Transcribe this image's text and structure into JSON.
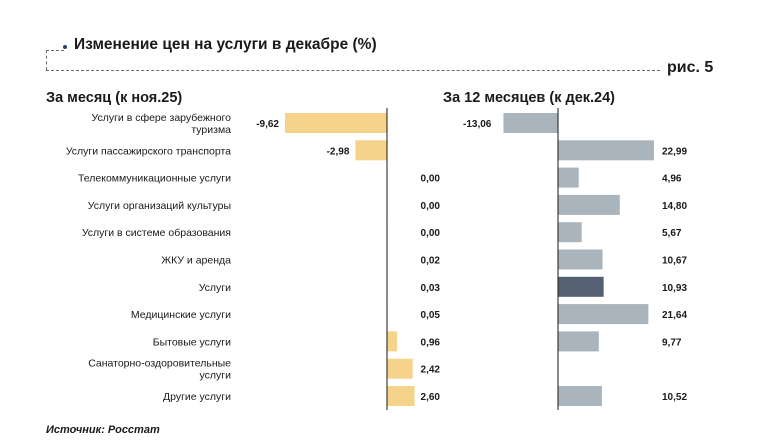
{
  "header": {
    "title": "Изменение цен на услуги в декабре (%)",
    "figure_label": "рис. 5"
  },
  "footer": {
    "source": "Источник: Росстат"
  },
  "colors": {
    "monthly_bar": "#f6d38a",
    "annual_bar": "#aab4bd",
    "annual_highlight": "#556173",
    "axis": "#1a1a1a"
  },
  "chart_data": {
    "type": "bar",
    "orientation": "horizontal",
    "categories": [
      [
        "Услуги в сфере зарубежного",
        "туризма"
      ],
      [
        "Услуги пассажирского транспорта"
      ],
      [
        "Телекоммуникационные услуги"
      ],
      [
        "Услуги организаций культуры"
      ],
      [
        "Услуги в системе образования"
      ],
      [
        "ЖКУ и аренда"
      ],
      [
        "Услуги"
      ],
      [
        "Медицинские услуги"
      ],
      [
        "Бытовые услуги"
      ],
      [
        "Санаторно-оздоровительные",
        "услуги"
      ],
      [
        "Другие услуги"
      ]
    ],
    "panels": [
      {
        "name": "За месяц (к ноя.25)",
        "values": [
          -9.62,
          -2.98,
          0.0,
          0.0,
          0.0,
          0.02,
          0.03,
          0.05,
          0.96,
          2.42,
          2.6
        ],
        "labels": [
          "-9,62",
          "-2,98",
          "0,00",
          "0,00",
          "0,00",
          "0,02",
          "0,03",
          "0,05",
          "0,96",
          "2,42",
          "2,60"
        ],
        "xlim": [
          -10,
          3
        ]
      },
      {
        "name": "За 12 месяцев (к дек.24)",
        "values": [
          -13.06,
          22.99,
          4.96,
          14.8,
          5.67,
          10.67,
          10.93,
          21.64,
          9.77,
          null,
          10.52
        ],
        "labels": [
          "-13,06",
          "22,99",
          "4,96",
          "14,80",
          "5,67",
          "10,67",
          "10,93",
          "21,64",
          "9,77",
          "",
          "10,52"
        ],
        "highlight_index": 6,
        "xlim": [
          -15,
          25
        ]
      }
    ]
  }
}
